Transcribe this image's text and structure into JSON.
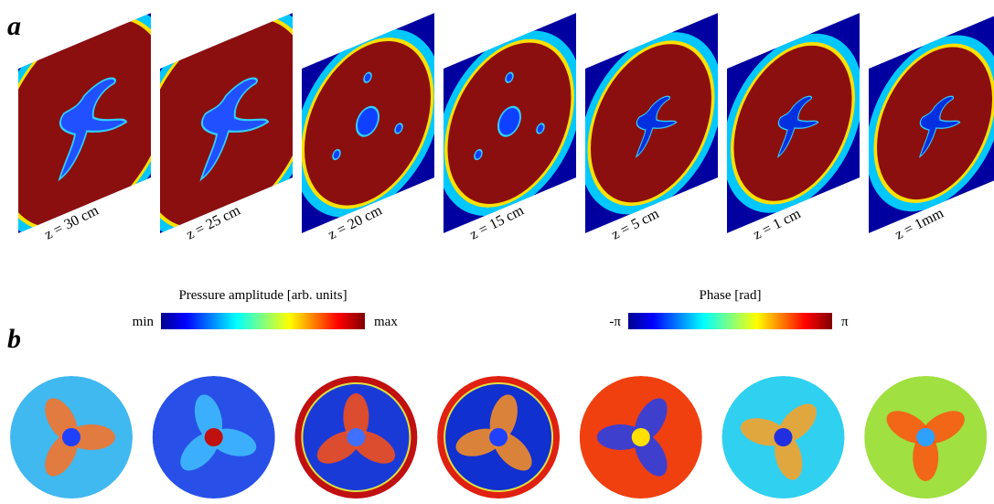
{
  "panel_a": {
    "label": "a",
    "planes": [
      {
        "label": "z = 30 cm"
      },
      {
        "label": "z = 25 cm"
      },
      {
        "label": "z = 20 cm"
      },
      {
        "label": "z = 15 cm"
      },
      {
        "label": "z = 5 cm"
      },
      {
        "label": "z = 1 cm"
      },
      {
        "label": "z = 1mm"
      }
    ]
  },
  "panel_b": {
    "label": "b",
    "colorbars": [
      {
        "title": "Pressure amplitude [arb. units]",
        "min": "min",
        "max": "max"
      },
      {
        "title": "Phase [rad]",
        "min": "-π",
        "max": "π"
      }
    ]
  }
}
